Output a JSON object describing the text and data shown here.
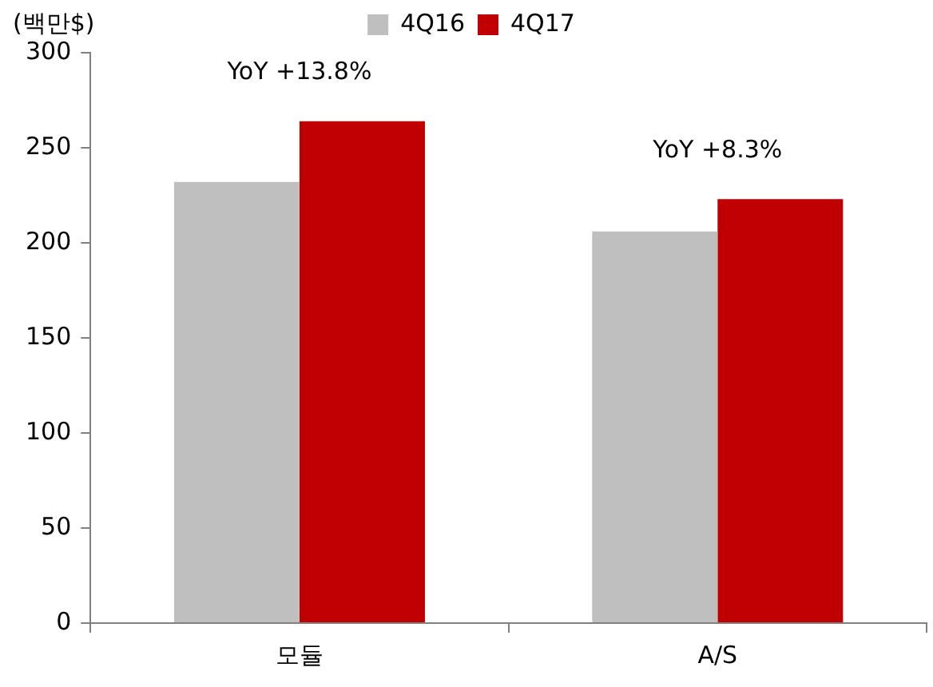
{
  "chart_data": {
    "type": "bar",
    "ylabel": "(백만$)",
    "categories": [
      "모듈",
      "A/S"
    ],
    "series": [
      {
        "name": "4Q16",
        "color": "#bfbfbf",
        "values": [
          232,
          206
        ]
      },
      {
        "name": "4Q17",
        "color": "#c00000",
        "values": [
          264,
          223
        ]
      }
    ],
    "ylim": [
      0,
      300
    ],
    "yticks": [
      0,
      50,
      100,
      150,
      200,
      250,
      300
    ],
    "grid": false,
    "legend": "top",
    "annotations": [
      "YoY +13.8%",
      "YoY +8.3%"
    ]
  }
}
